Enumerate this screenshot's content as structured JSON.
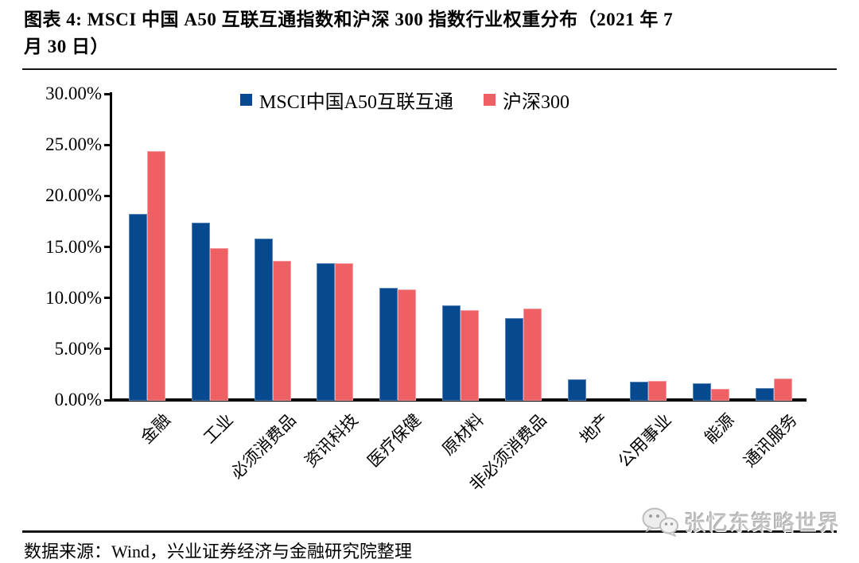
{
  "figure": {
    "title_line1": "图表 4: MSCI 中国 A50 互联互通指数和沪深 300 指数行业权重分布（2021 年 7",
    "title_line2": "月 30 日）",
    "source_note": "数据来源：Wind，兴业证券经济与金融研究院整理",
    "watermark": "张忆东策略世界"
  },
  "chart_data": {
    "type": "bar",
    "title": "MSCI中国A50互联互通指数和沪深300指数行业权重分布（2021年7月30日）",
    "categories": [
      "金融",
      "工业",
      "必须消费品",
      "资讯科技",
      "医疗保健",
      "原材料",
      "非必须消费品",
      "地产",
      "公用事业",
      "能源",
      "通讯服务"
    ],
    "series": [
      {
        "name": "MSCI中国A50互联互通",
        "color": "#07498E",
        "values": [
          18.2,
          17.4,
          15.8,
          13.4,
          11.0,
          9.3,
          8.0,
          2.0,
          1.8,
          1.6,
          1.2
        ]
      },
      {
        "name": "沪深300",
        "color": "#EF6064",
        "values": [
          24.4,
          14.9,
          13.6,
          13.4,
          10.8,
          8.8,
          9.0,
          0.0,
          1.9,
          1.1,
          2.1
        ]
      }
    ],
    "xlabel": "",
    "ylabel": "",
    "ylim": [
      0,
      30
    ],
    "yticks": [
      {
        "label": "0.00%",
        "value": 0
      },
      {
        "label": "5.00%",
        "value": 5
      },
      {
        "label": "10.00%",
        "value": 10
      },
      {
        "label": "15.00%",
        "value": 15
      },
      {
        "label": "20.00%",
        "value": 20
      },
      {
        "label": "25.00%",
        "value": 25
      },
      {
        "label": "30.00%",
        "value": 30
      }
    ],
    "grid": false,
    "legend_position": "top",
    "xtick_rotation_deg": 45
  }
}
